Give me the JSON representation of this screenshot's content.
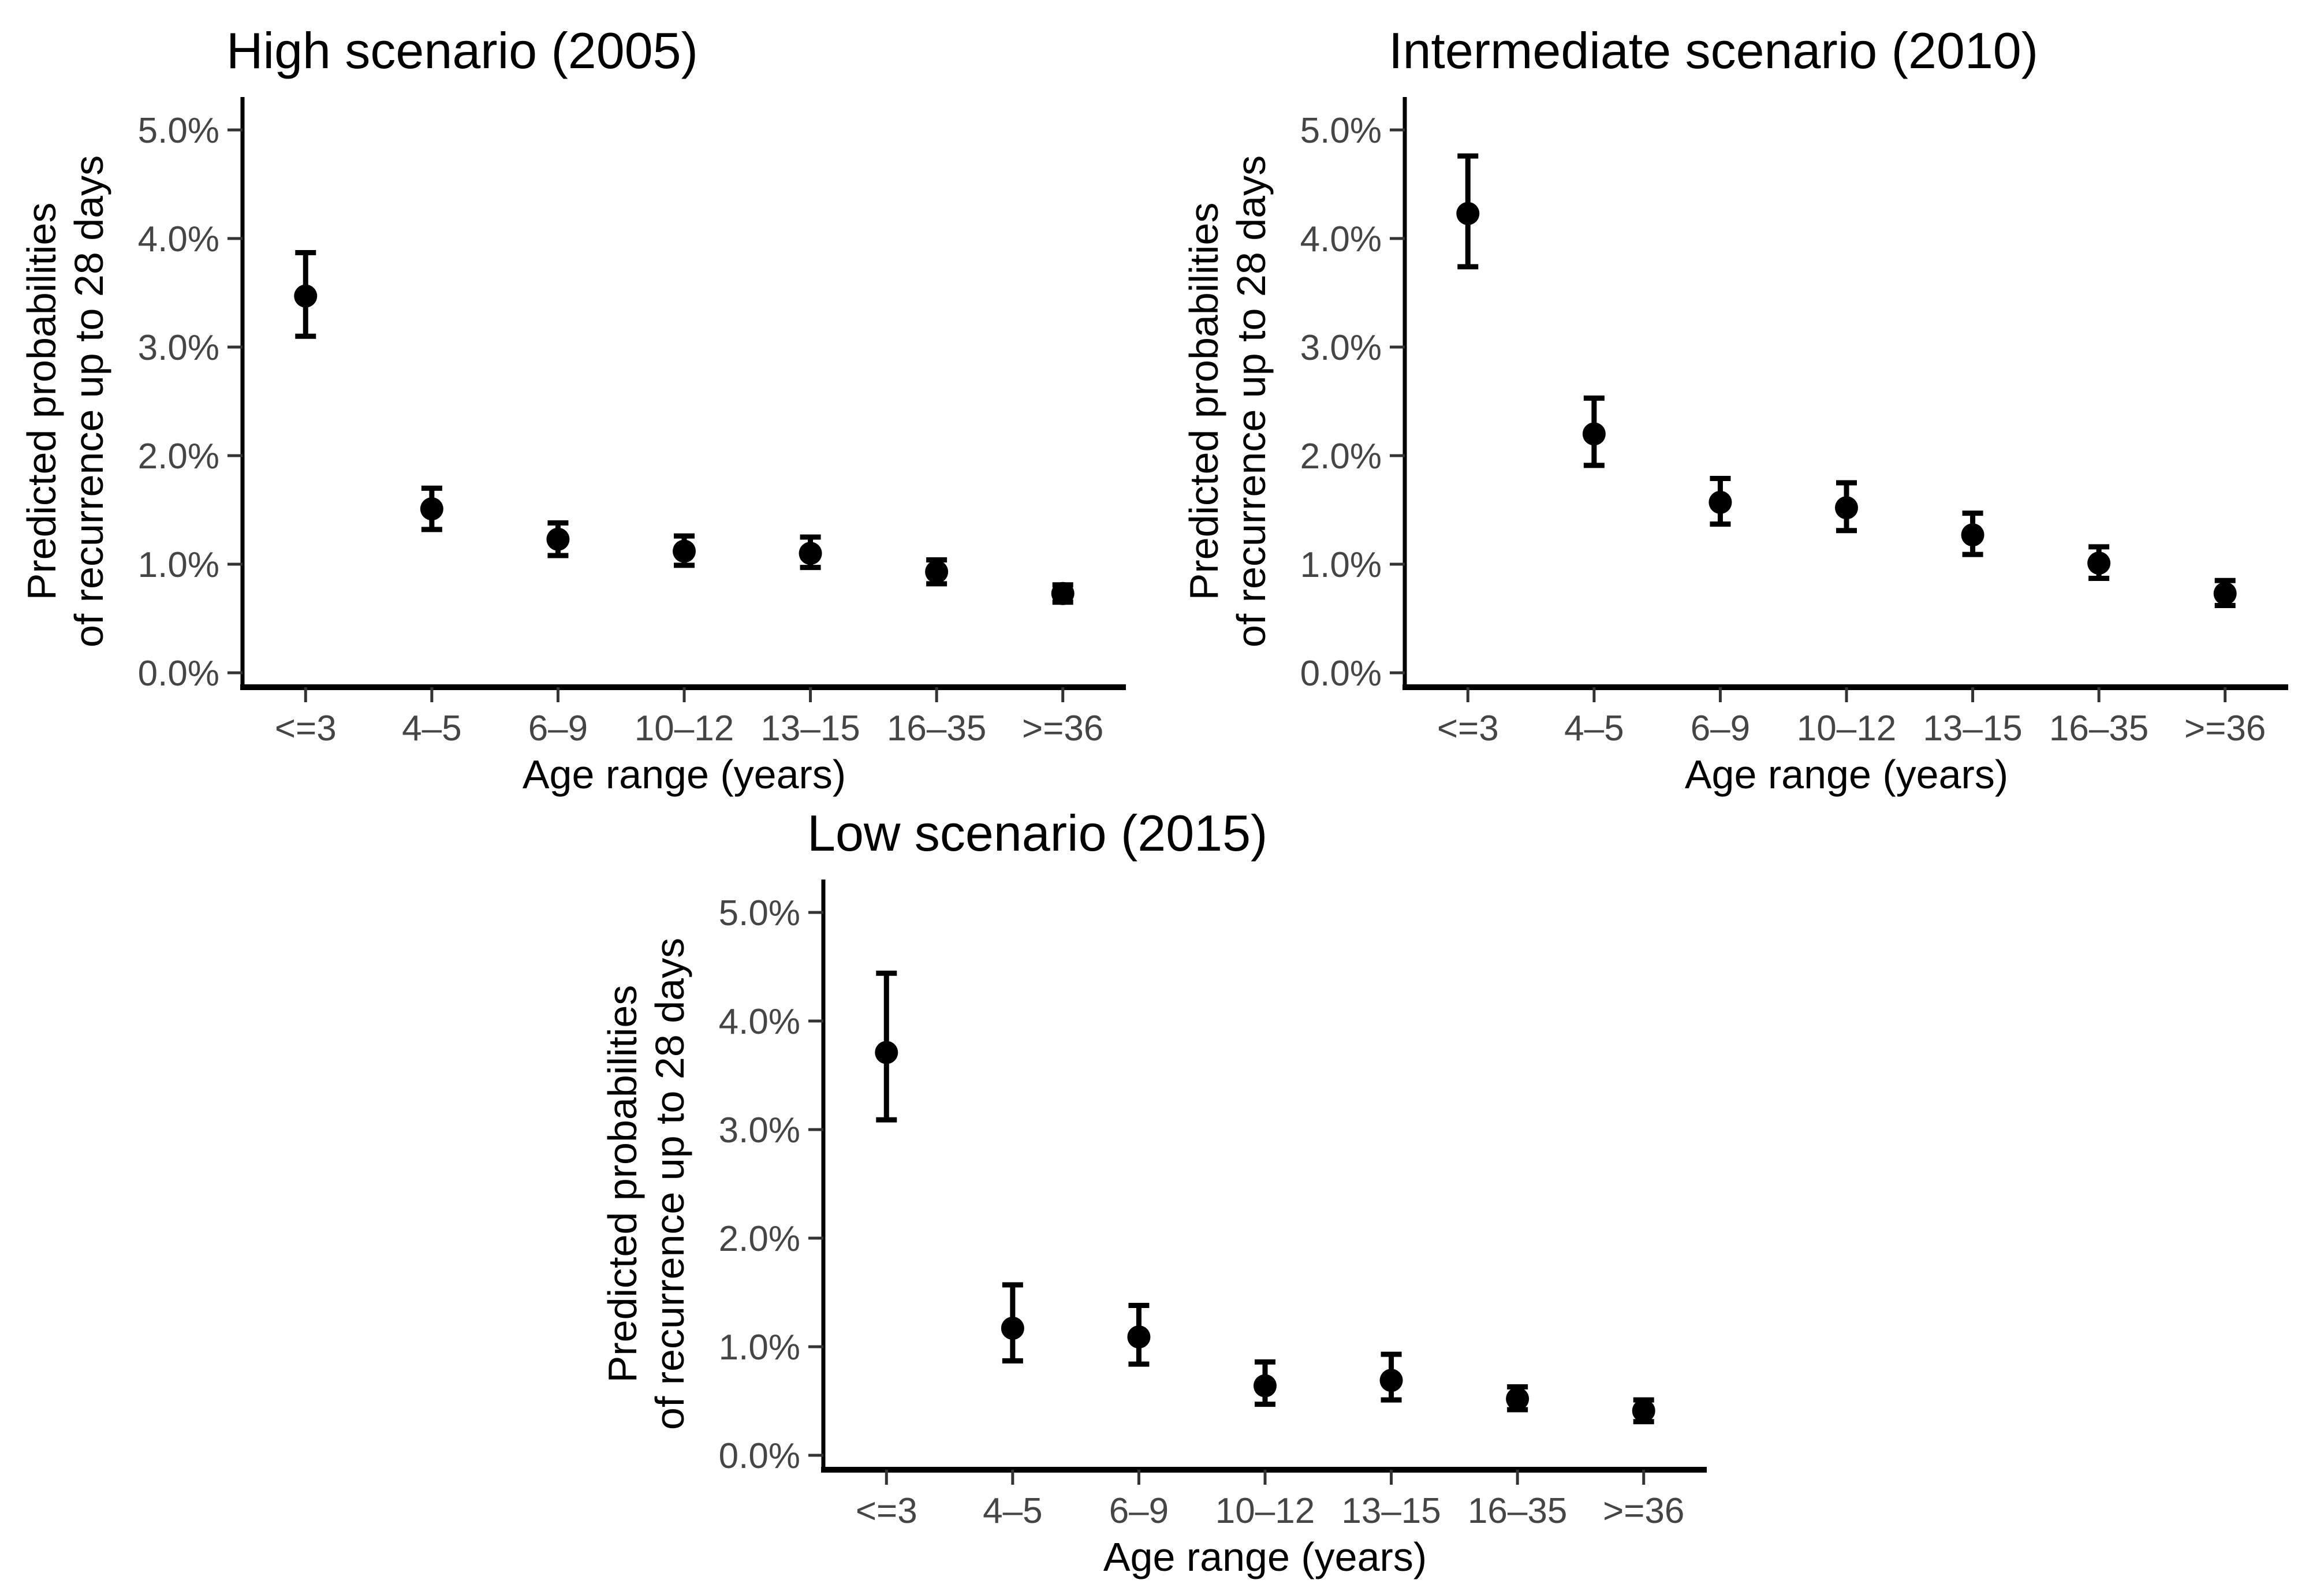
{
  "figure": {
    "background": "#ffffff",
    "point_color": "#000000",
    "axis_color": "#000000",
    "tick_color": "#333333",
    "tick_label_color": "#454545",
    "title_color": "#000000"
  },
  "chart_data": [
    {
      "type": "scatter",
      "title": "High scenario (2005)",
      "xlabel": "Age range (years)",
      "ylabel_lines": [
        "Predicted probabilities",
        "of recurrence up to 28 days"
      ],
      "categories": [
        "<=3",
        "4–5",
        "6–9",
        "10–12",
        "13–15",
        "16–35",
        ">=36"
      ],
      "unit": "%",
      "values": [
        3.47,
        1.51,
        1.23,
        1.12,
        1.1,
        0.93,
        0.73
      ],
      "ci_low": [
        3.1,
        1.32,
        1.08,
        0.99,
        0.97,
        0.82,
        0.65
      ],
      "ci_high": [
        3.87,
        1.7,
        1.38,
        1.26,
        1.25,
        1.04,
        0.81
      ],
      "yticks": [
        0,
        1,
        2,
        3,
        4,
        5
      ],
      "ytick_labels": [
        "0.0%",
        "1.0%",
        "2.0%",
        "3.0%",
        "4.0%",
        "5.0%"
      ],
      "ylim": [
        0,
        5.3
      ],
      "grid": false,
      "legend": "none"
    },
    {
      "type": "scatter",
      "title": "Intermediate scenario (2010)",
      "xlabel": "Age range (years)",
      "ylabel_lines": [
        "Predicted probabilities",
        "of recurrence up to 28 days"
      ],
      "categories": [
        "<=3",
        "4–5",
        "6–9",
        "10–12",
        "13–15",
        "16–35",
        ">=36"
      ],
      "unit": "%",
      "values": [
        4.23,
        2.2,
        1.57,
        1.52,
        1.27,
        1.01,
        0.73
      ],
      "ci_low": [
        3.74,
        1.91,
        1.37,
        1.31,
        1.09,
        0.87,
        0.62
      ],
      "ci_high": [
        4.76,
        2.53,
        1.79,
        1.75,
        1.47,
        1.16,
        0.85
      ],
      "yticks": [
        0,
        1,
        2,
        3,
        4,
        5
      ],
      "ytick_labels": [
        "0.0%",
        "1.0%",
        "2.0%",
        "3.0%",
        "4.0%",
        "5.0%"
      ],
      "ylim": [
        0,
        5.3
      ],
      "grid": false,
      "legend": "none"
    },
    {
      "type": "scatter",
      "title": "Low scenario (2015)",
      "xlabel": "Age range (years)",
      "ylabel_lines": [
        "Predicted probabilities",
        "of recurrence up to 28 days"
      ],
      "categories": [
        "<=3",
        "4–5",
        "6–9",
        "10–12",
        "13–15",
        "16–35",
        ">=36"
      ],
      "unit": "%",
      "values": [
        3.71,
        1.17,
        1.09,
        0.64,
        0.69,
        0.52,
        0.41
      ],
      "ci_low": [
        3.09,
        0.87,
        0.84,
        0.47,
        0.51,
        0.42,
        0.31
      ],
      "ci_high": [
        4.44,
        1.57,
        1.38,
        0.86,
        0.93,
        0.63,
        0.51
      ],
      "yticks": [
        0,
        1,
        2,
        3,
        4,
        5
      ],
      "ytick_labels": [
        "0.0%",
        "1.0%",
        "2.0%",
        "3.0%",
        "4.0%",
        "5.0%"
      ],
      "ylim": [
        0,
        5.3
      ],
      "grid": false,
      "legend": "none"
    }
  ]
}
